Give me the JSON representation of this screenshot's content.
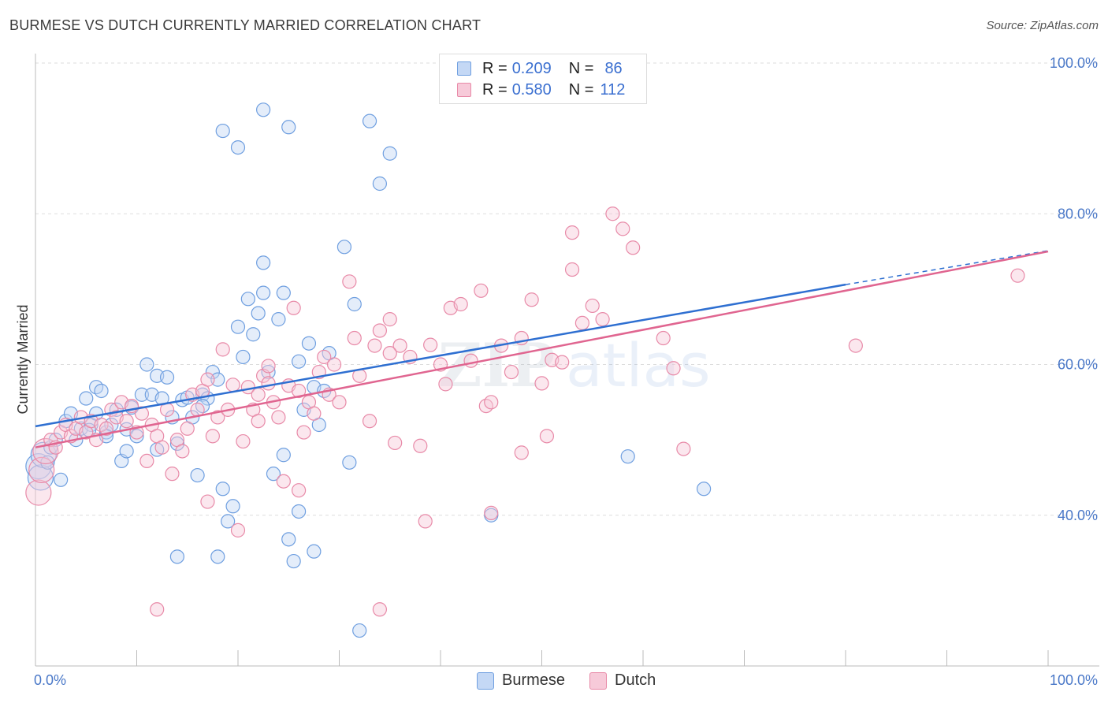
{
  "title": "BURMESE VS DUTCH CURRENTLY MARRIED CORRELATION CHART",
  "source": "Source: ZipAtlas.com",
  "legend": {
    "rows": [
      {
        "r_label": "R = ",
        "r_value": "0.209",
        "n_label": "N = ",
        "n_value": "86"
      },
      {
        "r_label": "R = ",
        "r_value": "0.580",
        "n_label": "N = ",
        "n_value": "112"
      }
    ]
  },
  "bottom_legend": {
    "burmese": "Burmese",
    "dutch": "Dutch"
  },
  "colors": {
    "burmese": "#6f9fe0",
    "burmese_fill": "#c4d8f5",
    "dutch": "#e88aa8",
    "dutch_fill": "#f7cad9",
    "burmese_line": "#2e6fd1",
    "dutch_line": "#e06590",
    "tick": "#4a78c8"
  },
  "chart_data": {
    "type": "scatter",
    "title": "BURMESE VS DUTCH CURRENTLY MARRIED CORRELATION CHART",
    "xlabel": "",
    "ylabel": "Currently Married",
    "xlim": [
      0,
      100
    ],
    "ylim": [
      20,
      100
    ],
    "x_tick_labels": [
      "0.0%",
      "100.0%"
    ],
    "y_ticks": [
      40,
      60,
      80,
      100
    ],
    "y_tick_labels": [
      "40.0%",
      "60.0%",
      "80.0%",
      "100.0%"
    ],
    "grid": true,
    "legend_position": "top-center",
    "series": [
      {
        "name": "Burmese",
        "r": 0.209,
        "n": 86,
        "trend": {
          "x0": 0,
          "y0": 51.8,
          "x1": 80,
          "y1": 70.6,
          "dashed_to_x": 100,
          "dashed_to_y": 75.1
        },
        "points": [
          [
            0.3,
            46.5
          ],
          [
            0.5,
            45
          ],
          [
            0.8,
            48
          ],
          [
            1.2,
            47
          ],
          [
            1.5,
            49
          ],
          [
            2,
            50
          ],
          [
            2.5,
            44.7
          ],
          [
            3,
            52.5
          ],
          [
            3.5,
            53.5
          ],
          [
            4,
            50
          ],
          [
            4.5,
            51.5
          ],
          [
            5,
            55.5
          ],
          [
            5.5,
            52
          ],
          [
            6,
            57
          ],
          [
            6.5,
            56.5
          ],
          [
            7,
            51
          ],
          [
            7.5,
            52
          ],
          [
            8,
            54
          ],
          [
            8.5,
            47.2
          ],
          [
            9,
            51.4
          ],
          [
            9.5,
            54.3
          ],
          [
            10,
            50.5
          ],
          [
            10.5,
            56
          ],
          [
            11,
            60
          ],
          [
            11.5,
            56
          ],
          [
            12,
            58.5
          ],
          [
            12.5,
            55.5
          ],
          [
            13,
            58.3
          ],
          [
            13.5,
            53
          ],
          [
            14,
            49.5
          ],
          [
            14.5,
            55.3
          ],
          [
            15,
            55.6
          ],
          [
            15.5,
            53
          ],
          [
            16,
            45.3
          ],
          [
            16.5,
            56
          ],
          [
            17,
            55.5
          ],
          [
            17.5,
            59
          ],
          [
            18,
            58
          ],
          [
            18.5,
            43.5
          ],
          [
            19,
            39.2
          ],
          [
            19.5,
            41.2
          ],
          [
            20,
            65
          ],
          [
            20.5,
            61
          ],
          [
            21,
            68.7
          ],
          [
            21.5,
            64
          ],
          [
            22,
            66.8
          ],
          [
            22.5,
            69.5
          ],
          [
            23,
            59
          ],
          [
            24,
            66
          ],
          [
            24.5,
            69.5
          ],
          [
            25,
            36.8
          ],
          [
            25.5,
            33.9
          ],
          [
            26,
            60.4
          ],
          [
            26.5,
            54
          ],
          [
            27,
            62.8
          ],
          [
            27.5,
            57
          ],
          [
            28,
            52
          ],
          [
            28.5,
            56.5
          ],
          [
            29,
            61.5
          ],
          [
            30.5,
            75.6
          ],
          [
            31,
            47
          ],
          [
            31.5,
            68
          ],
          [
            32,
            24.7
          ],
          [
            33,
            92.3
          ],
          [
            34,
            84
          ],
          [
            35,
            88
          ],
          [
            18,
            34.5
          ],
          [
            18.5,
            91
          ],
          [
            20,
            88.8
          ],
          [
            22.5,
            93.8
          ],
          [
            25,
            91.5
          ],
          [
            22.5,
            73.5
          ],
          [
            23.5,
            45.5
          ],
          [
            24.5,
            48
          ],
          [
            26,
            40.5
          ],
          [
            27.5,
            35.2
          ],
          [
            16.5,
            54.5
          ],
          [
            14,
            34.5
          ],
          [
            12,
            48.7
          ],
          [
            9,
            48.5
          ],
          [
            7,
            50.5
          ],
          [
            6,
            53.5
          ],
          [
            5.3,
            51.3
          ],
          [
            45,
            40
          ],
          [
            58.5,
            47.8
          ],
          [
            66,
            43.5
          ]
        ]
      },
      {
        "name": "Dutch",
        "r": 0.58,
        "n": 112,
        "trend": {
          "x0": 0,
          "y0": 49,
          "x1": 100,
          "y1": 75
        },
        "points": [
          [
            0.3,
            43
          ],
          [
            0.6,
            46
          ],
          [
            1,
            48.5
          ],
          [
            1.5,
            50
          ],
          [
            2,
            49
          ],
          [
            2.5,
            51
          ],
          [
            3,
            52
          ],
          [
            3.5,
            50.5
          ],
          [
            4,
            51.5
          ],
          [
            4.5,
            53
          ],
          [
            5,
            51
          ],
          [
            5.5,
            52.5
          ],
          [
            6,
            50
          ],
          [
            6.5,
            52
          ],
          [
            7,
            51.5
          ],
          [
            7.5,
            54
          ],
          [
            8,
            53
          ],
          [
            8.5,
            55
          ],
          [
            9,
            52.5
          ],
          [
            9.5,
            54.5
          ],
          [
            10,
            51
          ],
          [
            10.5,
            53.5
          ],
          [
            11,
            47.2
          ],
          [
            11.5,
            52
          ],
          [
            12,
            50.5
          ],
          [
            12.5,
            49
          ],
          [
            13,
            54
          ],
          [
            13.5,
            45.5
          ],
          [
            14,
            50
          ],
          [
            14.5,
            48.5
          ],
          [
            15,
            51.5
          ],
          [
            15.5,
            56
          ],
          [
            16,
            54
          ],
          [
            16.5,
            56.5
          ],
          [
            17,
            58
          ],
          [
            17.5,
            50.5
          ],
          [
            18,
            53
          ],
          [
            18.5,
            62
          ],
          [
            19,
            54
          ],
          [
            19.5,
            57.3
          ],
          [
            20,
            38
          ],
          [
            20.5,
            49.8
          ],
          [
            21,
            57
          ],
          [
            21.5,
            54
          ],
          [
            22,
            56
          ],
          [
            22.5,
            58.5
          ],
          [
            23,
            57.5
          ],
          [
            23.5,
            55
          ],
          [
            24,
            53
          ],
          [
            24.5,
            44.5
          ],
          [
            25,
            57.2
          ],
          [
            25.5,
            67.5
          ],
          [
            26,
            56.5
          ],
          [
            26.5,
            51
          ],
          [
            27,
            55
          ],
          [
            27.5,
            53.5
          ],
          [
            28,
            59
          ],
          [
            28.5,
            61
          ],
          [
            29,
            56
          ],
          [
            29.5,
            60
          ],
          [
            30,
            55
          ],
          [
            31,
            71
          ],
          [
            31.5,
            63.5
          ],
          [
            32,
            58.5
          ],
          [
            33,
            52.5
          ],
          [
            33.5,
            62.5
          ],
          [
            34,
            64.5
          ],
          [
            35,
            66
          ],
          [
            35.5,
            49.6
          ],
          [
            36,
            62.5
          ],
          [
            37,
            61
          ],
          [
            38,
            49.2
          ],
          [
            38.5,
            39.2
          ],
          [
            39,
            62.6
          ],
          [
            40,
            60
          ],
          [
            40.5,
            57.4
          ],
          [
            41,
            67.5
          ],
          [
            42,
            68
          ],
          [
            43,
            60.5
          ],
          [
            44,
            69.8
          ],
          [
            44.5,
            54.5
          ],
          [
            45,
            40.3
          ],
          [
            46,
            62.5
          ],
          [
            47,
            59
          ],
          [
            48,
            63.5
          ],
          [
            49,
            68.6
          ],
          [
            50,
            57.5
          ],
          [
            50.5,
            50.5
          ],
          [
            51,
            60.6
          ],
          [
            52,
            60.3
          ],
          [
            53,
            72.6
          ],
          [
            54,
            65.5
          ],
          [
            55,
            67.8
          ],
          [
            56,
            66
          ],
          [
            57,
            80
          ],
          [
            58,
            78
          ],
          [
            59,
            75.5
          ],
          [
            62,
            63.5
          ],
          [
            63,
            59.5
          ],
          [
            64,
            48.8
          ],
          [
            53,
            77.5
          ],
          [
            48,
            48.3
          ],
          [
            45,
            55
          ],
          [
            35,
            61.5
          ],
          [
            26,
            43.3
          ],
          [
            17,
            41.8
          ],
          [
            12,
            27.5
          ],
          [
            23,
            59.8
          ],
          [
            22,
            52.5
          ],
          [
            97,
            71.8
          ],
          [
            81,
            62.5
          ],
          [
            34,
            27.5
          ]
        ]
      }
    ]
  }
}
